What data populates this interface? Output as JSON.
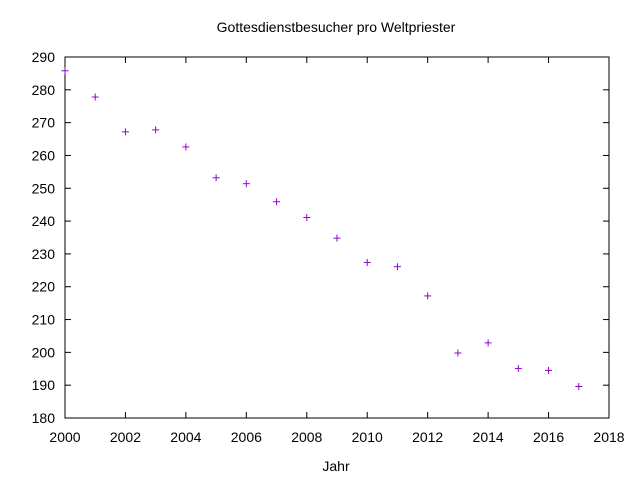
{
  "chart_data": {
    "type": "scatter",
    "title": "Gottesdienstbesucher pro Weltpriester",
    "xlabel": "Jahr",
    "ylabel": "",
    "xlim": [
      2000,
      2018
    ],
    "ylim": [
      180,
      290
    ],
    "xticks": [
      2000,
      2002,
      2004,
      2006,
      2008,
      2010,
      2012,
      2014,
      2016,
      2018
    ],
    "yticks": [
      180,
      190,
      200,
      210,
      220,
      230,
      240,
      250,
      260,
      270,
      280,
      290
    ],
    "marker": "plus",
    "color": "#9400d3",
    "grid": false,
    "series": [
      {
        "x": [
          2000,
          2001,
          2002,
          2003,
          2004,
          2005,
          2006,
          2007,
          2008,
          2009,
          2010,
          2011,
          2012,
          2013,
          2014,
          2015,
          2016,
          2017
        ],
        "y": [
          285.8,
          277.8,
          267.2,
          267.8,
          262.6,
          253.2,
          251.4,
          245.9,
          241.1,
          234.8,
          227.4,
          226.1,
          217.2,
          199.8,
          202.9,
          195.1,
          194.5,
          189.6
        ]
      }
    ]
  }
}
